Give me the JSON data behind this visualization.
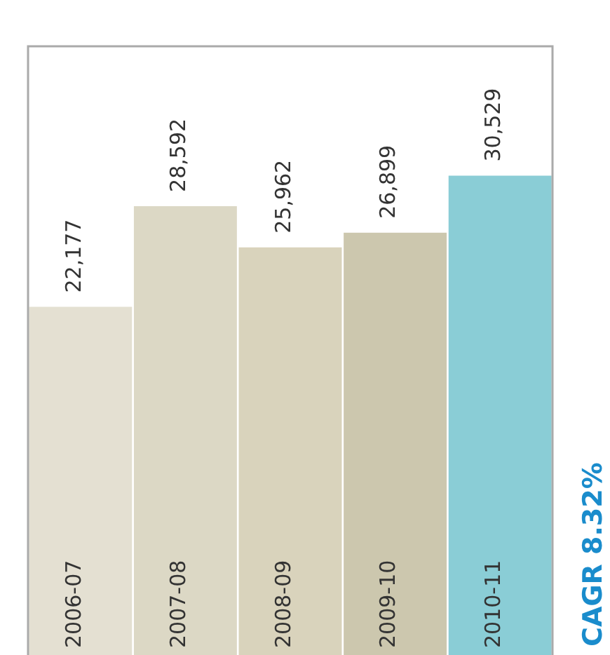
{
  "chart_data": {
    "type": "bar",
    "categories": [
      "2006-07",
      "2007-08",
      "2008-09",
      "2009-10",
      "2010-11"
    ],
    "values": [
      22177,
      28592,
      25962,
      26899,
      30529
    ],
    "colors": [
      "#e4e0d2",
      "#dcd8c5",
      "#d9d3bc",
      "#ccc7ae",
      "#8acdd6"
    ],
    "value_labels": [
      "22,177",
      "28,592",
      "25,962",
      "26,899",
      "30,529"
    ],
    "relative": false,
    "grid": false,
    "legend": false,
    "annotations": [
      "CAGR 8.32%"
    ]
  }
}
